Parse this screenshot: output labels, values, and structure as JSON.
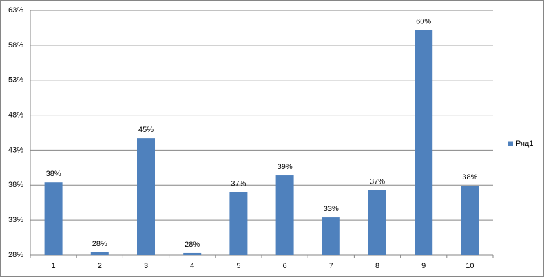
{
  "chart_data": {
    "type": "bar",
    "categories": [
      "1",
      "2",
      "3",
      "4",
      "5",
      "6",
      "7",
      "8",
      "9",
      "10"
    ],
    "series": [
      {
        "name": "Ряд1",
        "color": "#4f81bd",
        "values": [
          38.4,
          28.4,
          44.7,
          28.3,
          37.0,
          39.4,
          33.4,
          37.3,
          60.2,
          37.9
        ],
        "value_labels": [
          "38%",
          "28%",
          "45%",
          "28%",
          "37%",
          "39%",
          "33%",
          "37%",
          "60%",
          "38%"
        ]
      }
    ],
    "ylim": [
      28,
      63
    ],
    "yticks": [
      {
        "value": 28,
        "label": "28%"
      },
      {
        "value": 33,
        "label": "33%"
      },
      {
        "value": 38,
        "label": "38%"
      },
      {
        "value": 43,
        "label": "43%"
      },
      {
        "value": 48,
        "label": "48%"
      },
      {
        "value": 53,
        "label": "53%"
      },
      {
        "value": 58,
        "label": "58%"
      },
      {
        "value": 63,
        "label": "63%"
      }
    ],
    "grid": true,
    "legend": "right"
  }
}
